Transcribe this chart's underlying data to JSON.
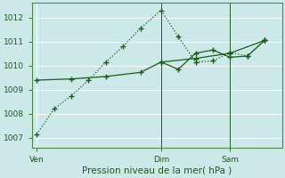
{
  "background_color": "#cce8e8",
  "grid_color": "#ffffff",
  "line_color": "#1a5c1a",
  "spine_color": "#4a8a4a",
  "xlabel": "Pression niveau de la mer( hPa )",
  "yticks": [
    1007,
    1008,
    1009,
    1010,
    1011,
    1012
  ],
  "ylim": [
    1006.6,
    1012.6
  ],
  "xlim": [
    0,
    14.5
  ],
  "xtick_labels": [
    "Ven",
    "Dim",
    "Sam"
  ],
  "xtick_positions": [
    0.3,
    7.5,
    11.5
  ],
  "series1_x": [
    0.3,
    1.3,
    2.3,
    3.3,
    4.3,
    5.3,
    6.3,
    7.5,
    8.5,
    9.5,
    10.5,
    11.5,
    12.5,
    13.5
  ],
  "series1_y": [
    1007.15,
    1008.2,
    1008.75,
    1009.4,
    1010.15,
    1010.8,
    1011.55,
    1012.3,
    1011.2,
    1010.15,
    1010.2,
    1010.55,
    1010.4,
    1011.05
  ],
  "series2_x": [
    0.3,
    2.3,
    4.3,
    6.3,
    7.5,
    9.5,
    11.5,
    13.5
  ],
  "series2_y": [
    1009.4,
    1009.45,
    1009.55,
    1009.72,
    1010.15,
    1010.3,
    1010.52,
    1011.05
  ],
  "series3_x": [
    7.5,
    8.5,
    9.5,
    10.5,
    11.5,
    12.5,
    13.5
  ],
  "series3_y": [
    1010.15,
    1009.85,
    1010.52,
    1010.65,
    1010.35,
    1010.4,
    1011.05
  ],
  "vline_x1": 7.5,
  "vline_x2": 11.5,
  "tick_fontsize": 6.5,
  "xlabel_fontsize": 7.5
}
